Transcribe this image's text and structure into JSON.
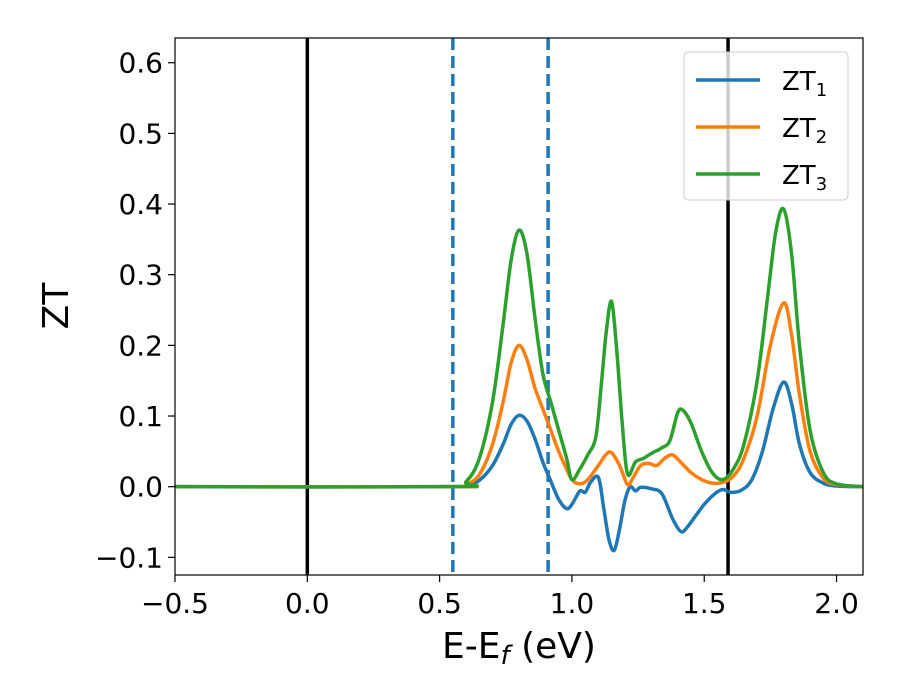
{
  "chart_data": {
    "type": "line",
    "xlabel": "E-E",
    "xlabel_sub": "f",
    "xlabel_unit": " (eV)",
    "ylabel": "ZT",
    "xlim": [
      -0.5,
      2.1
    ],
    "ylim": [
      -0.125,
      0.635
    ],
    "xticks": [
      -0.5,
      0.0,
      0.5,
      1.0,
      1.5,
      2.0
    ],
    "xtick_labels": [
      "−0.5",
      "0.0",
      "0.5",
      "1.0",
      "1.5",
      "2.0"
    ],
    "yticks": [
      -0.1,
      0.0,
      0.1,
      0.2,
      0.3,
      0.4,
      0.5,
      0.6
    ],
    "ytick_labels": [
      "−0.1",
      "0.0",
      "0.1",
      "0.2",
      "0.3",
      "0.4",
      "0.5",
      "0.6"
    ],
    "grid": false,
    "legend_position": "top-right",
    "vlines": [
      {
        "x": 0.0,
        "style": "solid",
        "color": "#000000"
      },
      {
        "x": 1.59,
        "style": "solid",
        "color": "#000000"
      },
      {
        "x": 0.55,
        "style": "dashed",
        "color": "#1f77b4"
      },
      {
        "x": 0.91,
        "style": "dashed",
        "color": "#1f77b4"
      }
    ],
    "series": [
      {
        "name": "ZT",
        "name_sub": "1",
        "color": "#1f77b4",
        "points": [
          [
            -0.5,
            0
          ],
          [
            0.55,
            0
          ],
          [
            0.6,
            0.0015
          ],
          [
            0.65,
            0.009
          ],
          [
            0.7,
            0.03
          ],
          [
            0.74,
            0.06
          ],
          [
            0.77,
            0.088
          ],
          [
            0.8,
            0.101
          ],
          [
            0.83,
            0.093
          ],
          [
            0.86,
            0.068
          ],
          [
            0.89,
            0.035
          ],
          [
            0.92,
            0.008
          ],
          [
            0.95,
            -0.018
          ],
          [
            0.98,
            -0.031
          ],
          [
            1.0,
            -0.025
          ],
          [
            1.03,
            -0.006
          ],
          [
            1.05,
            -0.008
          ],
          [
            1.07,
            0.006
          ],
          [
            1.1,
            0.013
          ],
          [
            1.12,
            -0.03
          ],
          [
            1.14,
            -0.075
          ],
          [
            1.16,
            -0.09
          ],
          [
            1.18,
            -0.06
          ],
          [
            1.2,
            -0.02
          ],
          [
            1.22,
            0.0
          ],
          [
            1.24,
            -0.006
          ],
          [
            1.26,
            -0.001
          ],
          [
            1.3,
            -0.003
          ],
          [
            1.34,
            -0.01
          ],
          [
            1.38,
            -0.045
          ],
          [
            1.41,
            -0.063
          ],
          [
            1.43,
            -0.06
          ],
          [
            1.47,
            -0.04
          ],
          [
            1.5,
            -0.025
          ],
          [
            1.54,
            -0.01
          ],
          [
            1.57,
            -0.004
          ],
          [
            1.6,
            -0.008
          ],
          [
            1.64,
            -0.005
          ],
          [
            1.68,
            0.01
          ],
          [
            1.72,
            0.05
          ],
          [
            1.76,
            0.11
          ],
          [
            1.8,
            0.148
          ],
          [
            1.83,
            0.118
          ],
          [
            1.86,
            0.06
          ],
          [
            1.9,
            0.02
          ],
          [
            1.95,
            0.005
          ],
          [
            2.0,
            0.001
          ],
          [
            2.1,
            0
          ]
        ]
      },
      {
        "name": "ZT",
        "name_sub": "2",
        "color": "#ff7f0e",
        "points": [
          [
            -0.5,
            0
          ],
          [
            0.55,
            0
          ],
          [
            0.6,
            0.003
          ],
          [
            0.65,
            0.017
          ],
          [
            0.7,
            0.06
          ],
          [
            0.74,
            0.12
          ],
          [
            0.77,
            0.175
          ],
          [
            0.8,
            0.2
          ],
          [
            0.83,
            0.18
          ],
          [
            0.86,
            0.14
          ],
          [
            0.89,
            0.11
          ],
          [
            0.92,
            0.08
          ],
          [
            0.95,
            0.05
          ],
          [
            0.98,
            0.025
          ],
          [
            1.0,
            0.01
          ],
          [
            1.03,
            0.004
          ],
          [
            1.06,
            0.01
          ],
          [
            1.1,
            0.03
          ],
          [
            1.13,
            0.046
          ],
          [
            1.15,
            0.048
          ],
          [
            1.18,
            0.03
          ],
          [
            1.21,
            0.003
          ],
          [
            1.23,
            0.012
          ],
          [
            1.26,
            0.03
          ],
          [
            1.29,
            0.033
          ],
          [
            1.32,
            0.03
          ],
          [
            1.35,
            0.04
          ],
          [
            1.38,
            0.045
          ],
          [
            1.41,
            0.035
          ],
          [
            1.45,
            0.02
          ],
          [
            1.49,
            0.01
          ],
          [
            1.53,
            0.005
          ],
          [
            1.57,
            0.006
          ],
          [
            1.61,
            0.015
          ],
          [
            1.65,
            0.04
          ],
          [
            1.7,
            0.1
          ],
          [
            1.75,
            0.2
          ],
          [
            1.8,
            0.26
          ],
          [
            1.83,
            0.215
          ],
          [
            1.86,
            0.13
          ],
          [
            1.9,
            0.05
          ],
          [
            1.95,
            0.012
          ],
          [
            2.0,
            0.003
          ],
          [
            2.1,
            0
          ]
        ]
      },
      {
        "name": "ZT",
        "name_sub": "3",
        "color": "#2ca02c",
        "points": [
          [
            -0.5,
            0
          ],
          [
            0.55,
            0
          ],
          [
            0.6,
            0.007
          ],
          [
            0.65,
            0.04
          ],
          [
            0.7,
            0.12
          ],
          [
            0.74,
            0.23
          ],
          [
            0.77,
            0.32
          ],
          [
            0.8,
            0.363
          ],
          [
            0.83,
            0.33
          ],
          [
            0.86,
            0.24
          ],
          [
            0.89,
            0.16
          ],
          [
            0.92,
            0.12
          ],
          [
            0.95,
            0.08
          ],
          [
            0.98,
            0.04
          ],
          [
            1.0,
            0.01
          ],
          [
            1.03,
            0.025
          ],
          [
            1.06,
            0.045
          ],
          [
            1.09,
            0.07
          ],
          [
            1.11,
            0.14
          ],
          [
            1.13,
            0.22
          ],
          [
            1.15,
            0.262
          ],
          [
            1.17,
            0.19
          ],
          [
            1.19,
            0.09
          ],
          [
            1.21,
            0.018
          ],
          [
            1.24,
            0.035
          ],
          [
            1.27,
            0.04
          ],
          [
            1.3,
            0.047
          ],
          [
            1.34,
            0.055
          ],
          [
            1.37,
            0.065
          ],
          [
            1.4,
            0.105
          ],
          [
            1.42,
            0.108
          ],
          [
            1.45,
            0.09
          ],
          [
            1.49,
            0.05
          ],
          [
            1.53,
            0.02
          ],
          [
            1.57,
            0.01
          ],
          [
            1.61,
            0.025
          ],
          [
            1.65,
            0.06
          ],
          [
            1.7,
            0.15
          ],
          [
            1.74,
            0.27
          ],
          [
            1.77,
            0.36
          ],
          [
            1.8,
            0.393
          ],
          [
            1.83,
            0.33
          ],
          [
            1.86,
            0.2
          ],
          [
            1.9,
            0.08
          ],
          [
            1.95,
            0.02
          ],
          [
            2.0,
            0.004
          ],
          [
            2.1,
            0
          ]
        ]
      }
    ]
  }
}
